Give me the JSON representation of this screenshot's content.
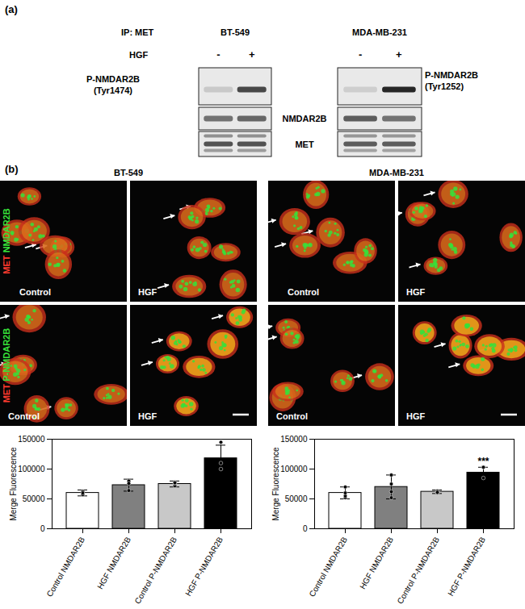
{
  "panel_a": {
    "label": "(a)",
    "ip": "IP: MET",
    "treatment": "HGF",
    "cell_lines": [
      {
        "name": "BT-549",
        "lanes": [
          "-",
          "+"
        ],
        "phospho_label": [
          "P-NMDAR2B",
          "(Tyr1474)"
        ]
      },
      {
        "name": "MDA-MB-231",
        "lanes": [
          "-",
          "+"
        ],
        "phospho_label": [
          "P-NMDAR2B",
          "(Tyr1252)"
        ]
      }
    ],
    "rows": [
      "NMDAR2B",
      "MET"
    ]
  },
  "panel_b": {
    "label": "(b)",
    "cell_lines": [
      "BT-549",
      "MDA-MB-231"
    ],
    "rows": [
      {
        "stain": [
          "MET",
          "NMDAR2B"
        ]
      },
      {
        "stain": [
          "MET",
          "P-NMDAR2B"
        ]
      }
    ],
    "conditions": [
      "Control",
      "HGF"
    ],
    "stain_colors": [
      "#ff3b2f",
      "#37e03a"
    ]
  },
  "chart_data": [
    {
      "type": "bar",
      "categories": [
        "Control NMDAR2B",
        "HGF NMDAR2B",
        "Control P-NMDAR2B",
        "HGF P-NMDAR2B"
      ],
      "values": [
        60000,
        73000,
        75000,
        118000
      ],
      "errors": [
        5000,
        10000,
        5000,
        22000
      ],
      "points": [
        [
          57000,
          62000,
          60000
        ],
        [
          64000,
          80000,
          76000
        ],
        [
          72000,
          76000,
          77000
        ],
        [
          145000,
          100000,
          110000
        ]
      ],
      "colors": [
        "#ffffff",
        "#808080",
        "#c8c8c8",
        "#000000"
      ],
      "ylabel": "Merge Fluorescence",
      "ylim": [
        0,
        150000
      ],
      "yticks": [
        0,
        50000,
        100000,
        150000
      ],
      "annotations": []
    },
    {
      "type": "bar",
      "categories": [
        "Control NMDAR2B",
        "HGF NMDAR2B",
        "Control P-NMDAR2B",
        "HGF P-NMDAR2B"
      ],
      "values": [
        60000,
        70000,
        62000,
        94000
      ],
      "errors": [
        10000,
        20000,
        3000,
        9000
      ],
      "points": [
        [
          52000,
          55000,
          70000,
          60000
        ],
        [
          52000,
          90000,
          75000,
          62000
        ],
        [
          60000,
          62000,
          63000,
          61000
        ],
        [
          103000,
          103000,
          85000
        ]
      ],
      "colors": [
        "#ffffff",
        "#808080",
        "#c8c8c8",
        "#000000"
      ],
      "ylabel": "Merge Fluorescence",
      "ylim": [
        0,
        150000
      ],
      "yticks": [
        0,
        50000,
        100000,
        150000
      ],
      "annotations": [
        {
          "category": "HGF P-NMDAR2B",
          "text": "***"
        }
      ]
    }
  ]
}
